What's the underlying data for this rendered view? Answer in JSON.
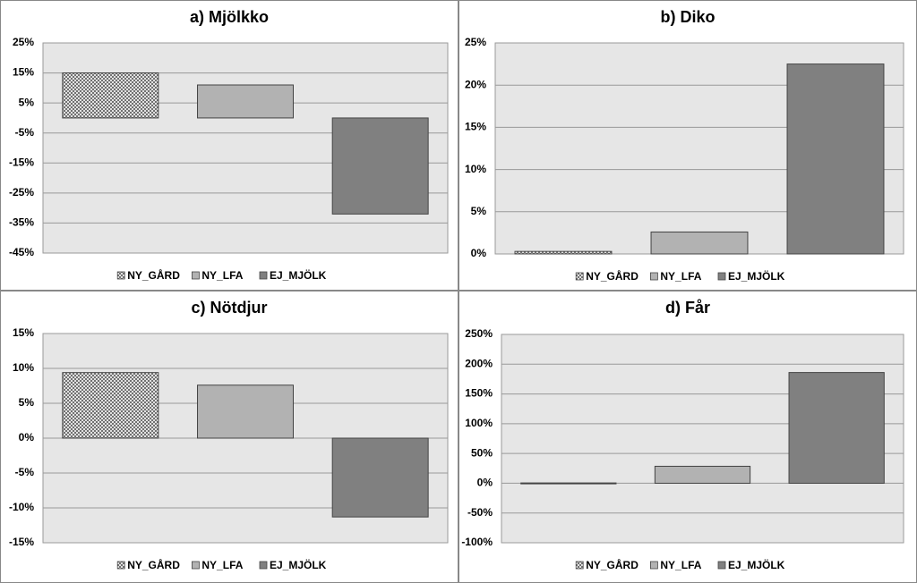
{
  "chart_data": [
    {
      "type": "bar",
      "title": "a) Mjölkko",
      "categories": [
        null
      ],
      "series": [
        {
          "name": "NY_GÅRD",
          "color": "#c8c8c8",
          "pattern": "crosshatch",
          "values": [
            15
          ]
        },
        {
          "name": "NY_LFA",
          "color": "#b2b2b2",
          "values": [
            11
          ]
        },
        {
          "name": "EJ_MJÖLK",
          "color": "#808080",
          "values": [
            -32
          ]
        }
      ],
      "ylim": [
        -45,
        25
      ],
      "yticks": [
        {
          "value": -45,
          "label": "-45%"
        },
        {
          "value": -35,
          "label": "-35%"
        },
        {
          "value": -25,
          "label": "-25%"
        },
        {
          "value": -15,
          "label": "-15%"
        },
        {
          "value": -5,
          "label": "-5%"
        },
        {
          "value": 5,
          "label": "5%"
        },
        {
          "value": 15,
          "label": "15%"
        },
        {
          "value": 25,
          "label": "25%"
        }
      ],
      "grid": true,
      "legend": "bottom"
    },
    {
      "type": "bar",
      "title": "b) Diko",
      "categories": [
        null
      ],
      "series": [
        {
          "name": "NY_GÅRD",
          "color": "#c8c8c8",
          "pattern": "crosshatch",
          "values": [
            0.3
          ]
        },
        {
          "name": "NY_LFA",
          "color": "#b2b2b2",
          "values": [
            2.6
          ]
        },
        {
          "name": "EJ_MJÖLK",
          "color": "#808080",
          "values": [
            22.5
          ]
        }
      ],
      "ylim": [
        0,
        25
      ],
      "yticks": [
        {
          "value": 0,
          "label": "0%"
        },
        {
          "value": 5,
          "label": "5%"
        },
        {
          "value": 10,
          "label": "10%"
        },
        {
          "value": 15,
          "label": "15%"
        },
        {
          "value": 20,
          "label": "20%"
        },
        {
          "value": 25,
          "label": "25%"
        }
      ],
      "grid": true,
      "legend": "bottom"
    },
    {
      "type": "bar",
      "title": "c) Nötdjur",
      "categories": [
        null
      ],
      "series": [
        {
          "name": "NY_GÅRD",
          "color": "#c8c8c8",
          "pattern": "crosshatch",
          "values": [
            9.4
          ]
        },
        {
          "name": "NY_LFA",
          "color": "#b2b2b2",
          "values": [
            7.6
          ]
        },
        {
          "name": "EJ_MJÖLK",
          "color": "#808080",
          "values": [
            -11.3
          ]
        }
      ],
      "ylim": [
        -15,
        15
      ],
      "yticks": [
        {
          "value": -15,
          "label": "-15%"
        },
        {
          "value": -10,
          "label": "-10%"
        },
        {
          "value": -5,
          "label": "-5%"
        },
        {
          "value": 0,
          "label": "0%"
        },
        {
          "value": 5,
          "label": "5%"
        },
        {
          "value": 10,
          "label": "10%"
        },
        {
          "value": 15,
          "label": "15%"
        }
      ],
      "grid": true,
      "legend": "bottom"
    },
    {
      "type": "bar",
      "title": "d) Får",
      "categories": [
        null
      ],
      "series": [
        {
          "name": "NY_GÅRD",
          "color": "#c8c8c8",
          "pattern": "crosshatch",
          "values": [
            0.5
          ]
        },
        {
          "name": "NY_LFA",
          "color": "#b2b2b2",
          "values": [
            28.5
          ]
        },
        {
          "name": "EJ_MJÖLK",
          "color": "#808080",
          "values": [
            186
          ]
        }
      ],
      "ylim": [
        -100,
        250
      ],
      "yticks": [
        {
          "value": -100,
          "label": "-100%"
        },
        {
          "value": -50,
          "label": "-50%"
        },
        {
          "value": 0,
          "label": "0%"
        },
        {
          "value": 50,
          "label": "50%"
        },
        {
          "value": 100,
          "label": "100%"
        },
        {
          "value": 150,
          "label": "150%"
        },
        {
          "value": 200,
          "label": "200%"
        },
        {
          "value": 250,
          "label": "250%"
        }
      ],
      "grid": true,
      "legend": "bottom"
    }
  ]
}
